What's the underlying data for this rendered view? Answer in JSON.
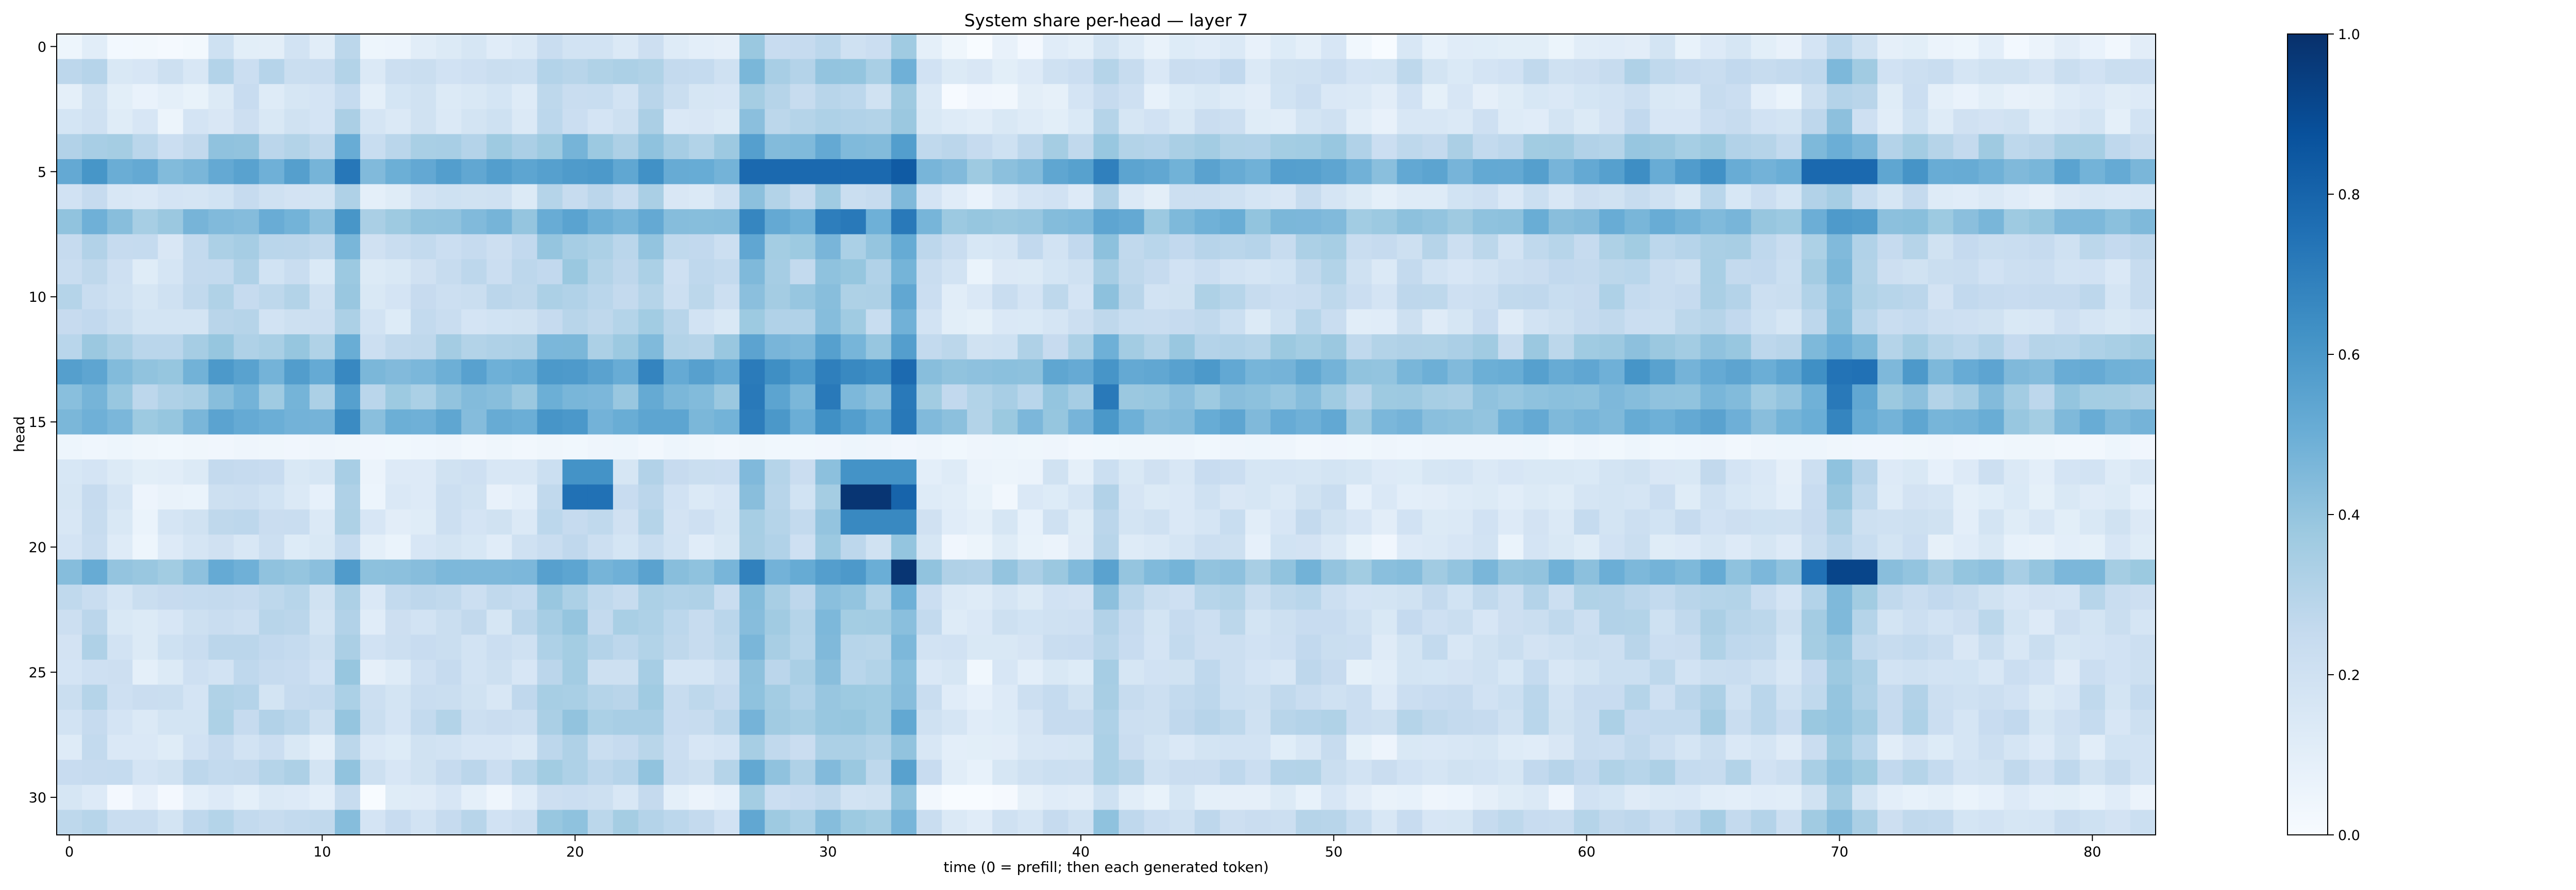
{
  "chart_data": {
    "type": "heatmap",
    "title": "System share per-head — layer 7",
    "xlabel": "time (0 = prefill; then each generated token)",
    "ylabel": "head",
    "xlim": [
      -0.5,
      82.5
    ],
    "ylim": [
      -0.5,
      31.5
    ],
    "x_ticks": [
      0,
      10,
      20,
      30,
      40,
      50,
      60,
      70,
      80
    ],
    "y_ticks": [
      0,
      5,
      10,
      15,
      20,
      25,
      30
    ],
    "n_cols": 83,
    "n_rows": 32,
    "colormap": "Blues",
    "colorbar": {
      "min": 0.0,
      "max": 1.0,
      "ticks": [
        0.0,
        0.2,
        0.4,
        0.6,
        0.8,
        1.0
      ]
    },
    "colors": {
      "cmap_low": "#f7fbff",
      "cmap_high": "#08306b"
    },
    "row_profile": [
      0.08,
      0.2,
      0.12,
      0.14,
      0.3,
      0.5,
      0.15,
      0.42,
      0.24,
      0.2,
      0.22,
      0.18,
      0.3,
      0.48,
      0.36,
      0.44,
      0.05,
      0.14,
      0.12,
      0.15,
      0.12,
      0.4,
      0.22,
      0.2,
      0.2,
      0.17,
      0.2,
      0.22,
      0.14,
      0.22,
      0.08,
      0.22
    ],
    "col_profile": [
      0.02,
      0.05,
      0.0,
      -0.02,
      -0.02,
      0.0,
      0.05,
      0.05,
      0.03,
      0.04,
      0.0,
      0.12,
      -0.02,
      0.0,
      0.02,
      0.03,
      0.02,
      0.01,
      0.02,
      0.08,
      0.1,
      0.06,
      0.06,
      0.1,
      0.04,
      0.03,
      0.02,
      0.18,
      0.1,
      0.08,
      0.16,
      0.1,
      0.08,
      0.2,
      0.0,
      -0.04,
      -0.06,
      -0.03,
      -0.02,
      0.0,
      0.0,
      0.1,
      0.03,
      0.0,
      0.02,
      0.04,
      0.03,
      0.0,
      0.02,
      0.04,
      0.04,
      -0.02,
      -0.02,
      0.02,
      0.0,
      0.0,
      0.01,
      0.0,
      0.02,
      0.02,
      0.04,
      0.04,
      0.06,
      0.04,
      0.03,
      0.06,
      0.04,
      0.02,
      0.0,
      0.08,
      0.16,
      0.08,
      0.02,
      0.04,
      0.0,
      0.0,
      0.02,
      0.0,
      -0.02,
      0.0,
      0.02,
      0.0,
      0.0
    ],
    "highlights": [
      {
        "row": 5,
        "cols": [
          27,
          28,
          29,
          30,
          31,
          32
        ],
        "value": 0.78
      },
      {
        "row": 5,
        "cols": [
          69,
          70,
          71
        ],
        "value": 0.78
      },
      {
        "row": 7,
        "cols": [
          31,
          33
        ],
        "value": 0.72
      },
      {
        "row": 13,
        "cols": [
          71
        ],
        "value": 0.75
      },
      {
        "row": 14,
        "cols": [
          27,
          30,
          33,
          41,
          70
        ],
        "value": 0.72
      },
      {
        "row": 17,
        "cols": [
          20,
          21,
          31,
          32,
          33
        ],
        "value": 0.62
      },
      {
        "row": 18,
        "cols": [
          20,
          21
        ],
        "value": 0.75
      },
      {
        "row": 18,
        "cols": [
          31,
          32
        ],
        "value": 0.98
      },
      {
        "row": 18,
        "cols": [
          33
        ],
        "value": 0.8
      },
      {
        "row": 19,
        "cols": [
          31,
          32,
          33
        ],
        "value": 0.66
      },
      {
        "row": 21,
        "cols": [
          33
        ],
        "value": 0.98
      },
      {
        "row": 21,
        "cols": [
          70,
          71
        ],
        "value": 0.92
      },
      {
        "row": 21,
        "cols": [
          69
        ],
        "value": 0.75
      }
    ]
  }
}
